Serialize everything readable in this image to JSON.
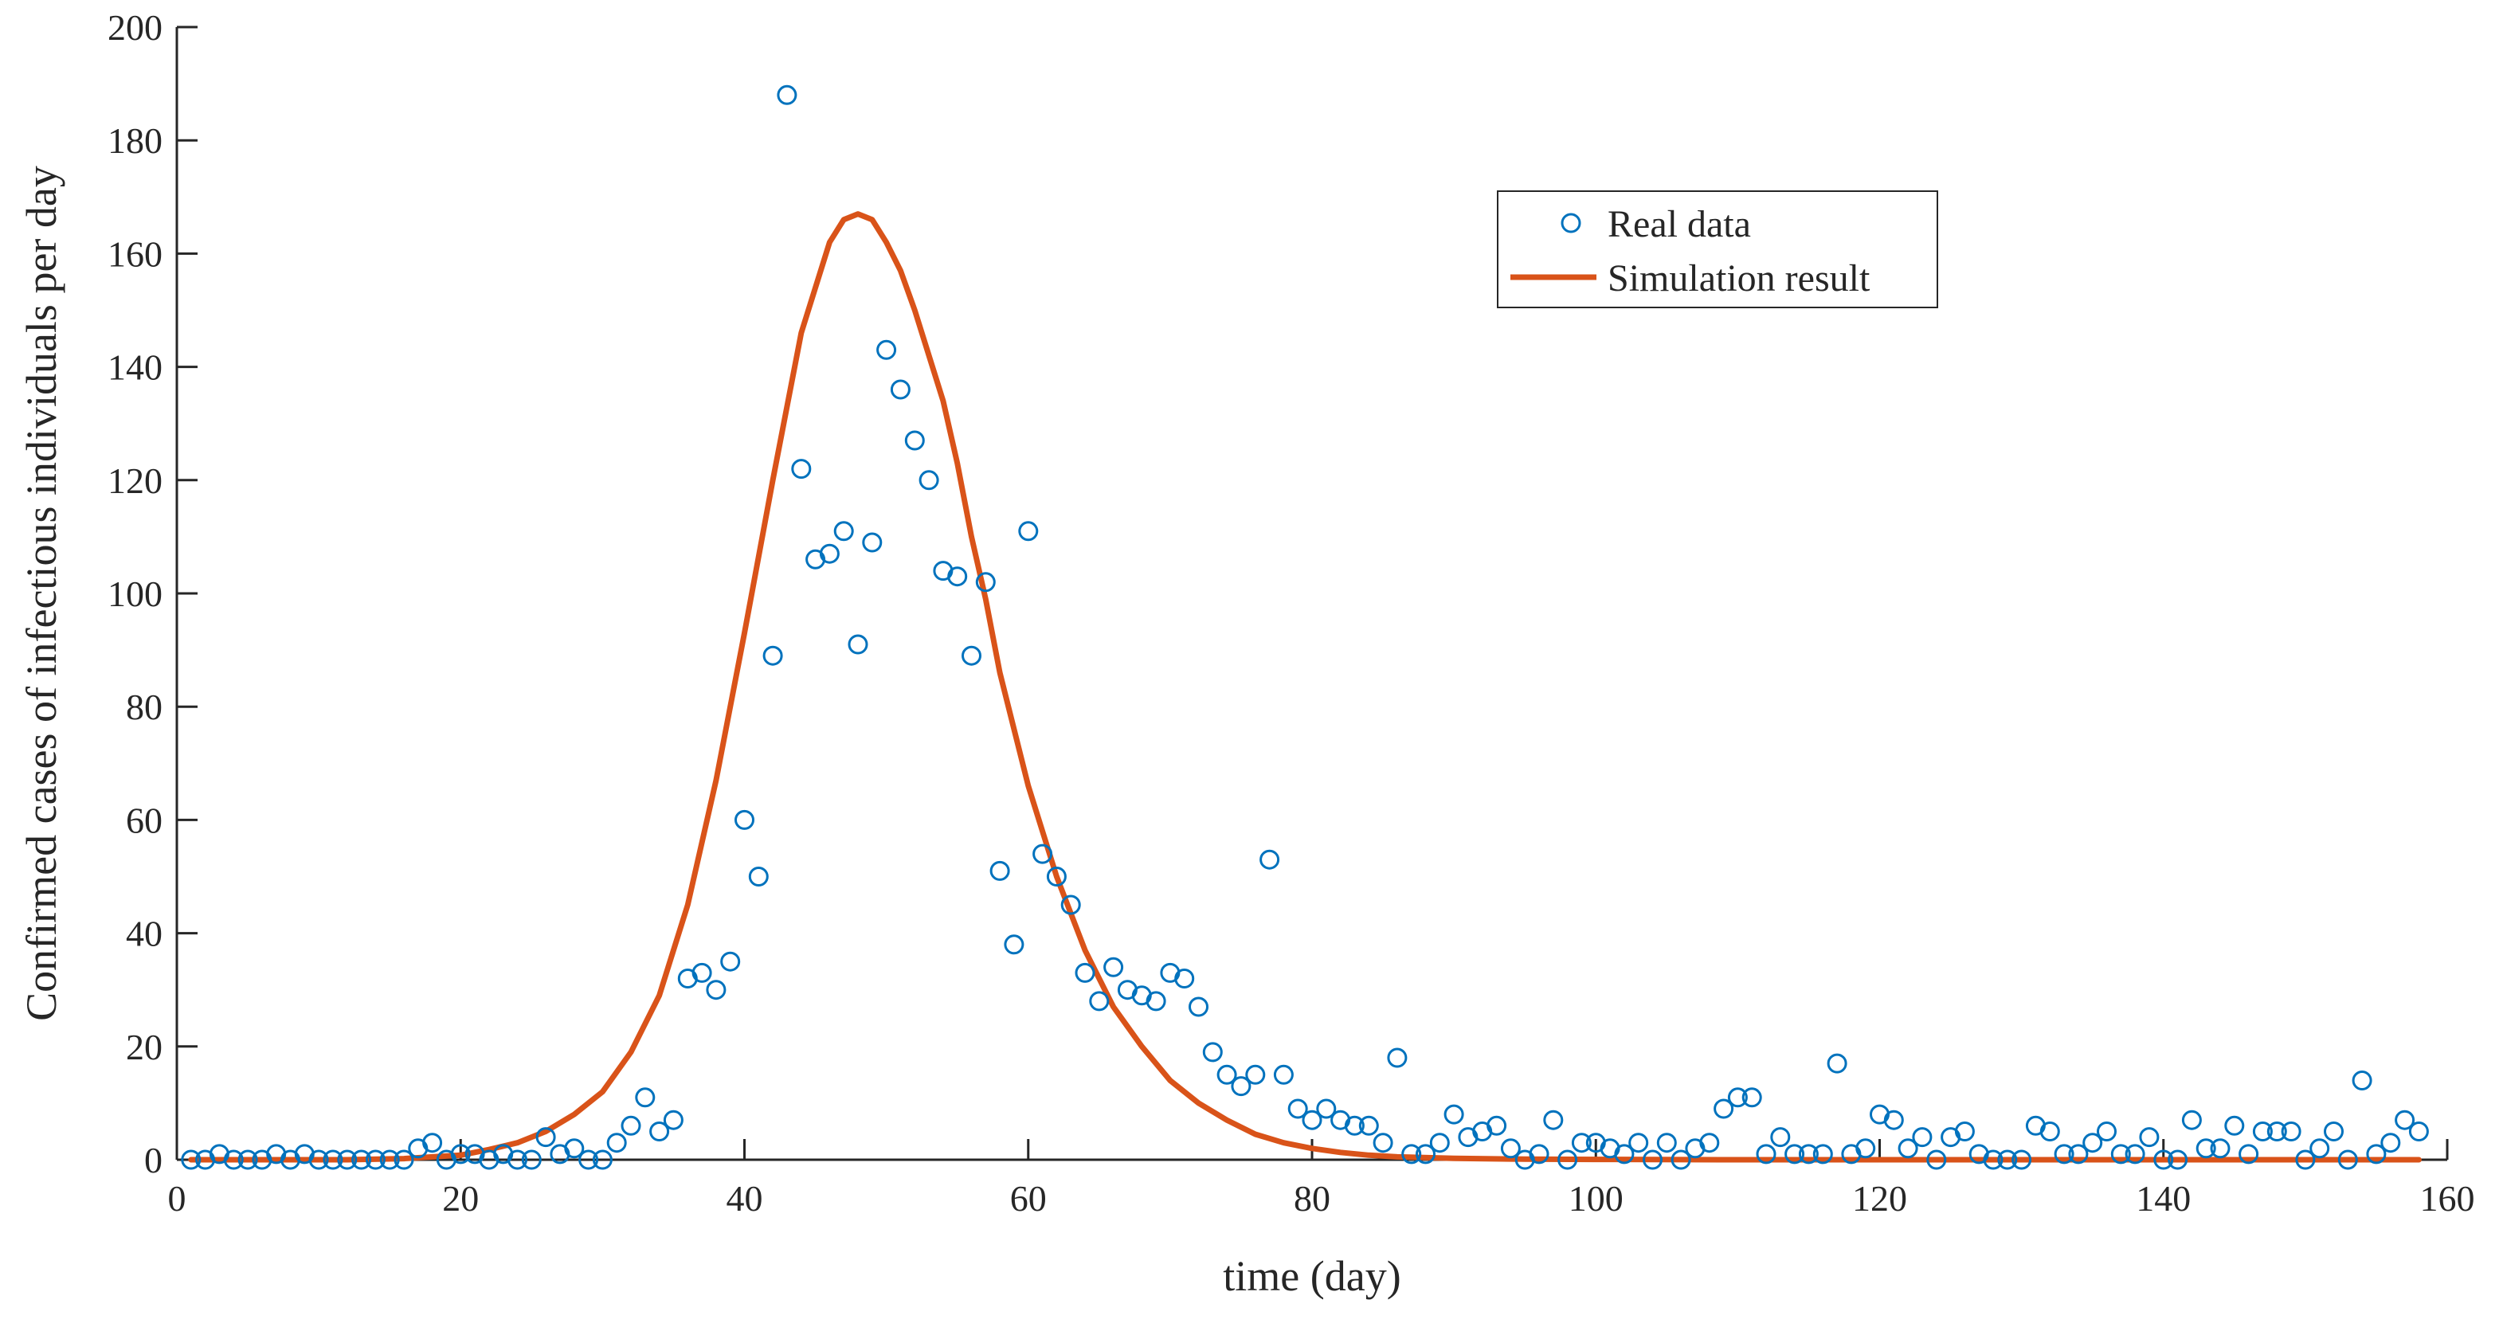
{
  "chart_data": {
    "type": "scatter",
    "title": "",
    "xlabel": "time (day)",
    "ylabel": "Confirmed cases of infectious individuals per day",
    "xlim": [
      0,
      160
    ],
    "ylim": [
      0,
      200
    ],
    "xticks": [
      0,
      20,
      40,
      60,
      80,
      100,
      120,
      140,
      160
    ],
    "yticks": [
      0,
      20,
      40,
      60,
      80,
      100,
      120,
      140,
      160,
      180,
      200
    ],
    "grid": false,
    "legend_position": "top-right",
    "colors": {
      "real": "#0072BD",
      "sim": "#D95319",
      "axis": "#262626"
    },
    "series": [
      {
        "name": "Real data",
        "kind": "scatter",
        "x": [
          1,
          2,
          3,
          4,
          5,
          6,
          7,
          8,
          9,
          10,
          11,
          12,
          13,
          14,
          15,
          16,
          17,
          18,
          19,
          20,
          21,
          22,
          23,
          24,
          25,
          26,
          27,
          28,
          29,
          30,
          31,
          32,
          33,
          34,
          35,
          36,
          37,
          38,
          39,
          40,
          41,
          42,
          43,
          44,
          45,
          46,
          47,
          48,
          49,
          50,
          51,
          52,
          53,
          54,
          55,
          56,
          57,
          58,
          59,
          60,
          61,
          62,
          63,
          64,
          65,
          66,
          67,
          68,
          69,
          70,
          71,
          72,
          73,
          74,
          75,
          76,
          77,
          78,
          79,
          80,
          81,
          82,
          83,
          84,
          85,
          86,
          87,
          88,
          89,
          90,
          91,
          92,
          93,
          94,
          95,
          96,
          97,
          98,
          99,
          100,
          101,
          102,
          103,
          104,
          105,
          106,
          107,
          108,
          109,
          110,
          111,
          112,
          113,
          114,
          115,
          116,
          117,
          118,
          119,
          120,
          121,
          122,
          123,
          124,
          125,
          126,
          127,
          128,
          129,
          130,
          131,
          132,
          133,
          134,
          135,
          136,
          137,
          138,
          139,
          140,
          141,
          142,
          143,
          144,
          145,
          146,
          147,
          148,
          149,
          150,
          151,
          152,
          153,
          154,
          155,
          156,
          157,
          158
        ],
        "y": [
          0,
          0,
          1,
          0,
          0,
          0,
          1,
          0,
          1,
          0,
          0,
          0,
          0,
          0,
          0,
          0,
          2,
          3,
          0,
          1,
          1,
          0,
          1,
          0,
          0,
          4,
          1,
          2,
          0,
          0,
          3,
          6,
          11,
          5,
          7,
          32,
          33,
          30,
          35,
          60,
          50,
          89,
          188,
          122,
          106,
          107,
          111,
          91,
          109,
          143,
          136,
          127,
          120,
          104,
          103,
          89,
          102,
          51,
          38,
          111,
          54,
          50,
          45,
          33,
          28,
          34,
          30,
          29,
          28,
          33,
          32,
          27,
          19,
          15,
          13,
          15,
          53,
          15,
          9,
          7,
          9,
          7,
          6,
          6,
          3,
          18,
          1,
          1,
          3,
          8,
          4,
          5,
          6,
          2,
          0,
          1,
          7,
          0,
          3,
          3,
          2,
          1,
          3,
          0,
          3,
          0,
          2,
          3,
          9,
          11,
          11,
          1,
          4,
          1,
          1,
          1,
          17,
          1,
          2,
          8,
          7,
          2,
          4,
          0,
          4,
          5,
          1,
          0,
          0,
          0,
          6,
          5,
          1,
          1,
          3,
          5,
          1,
          1,
          4,
          0,
          0,
          7,
          2,
          2,
          6,
          1,
          5,
          5,
          5,
          0,
          2,
          5,
          0,
          14,
          1,
          3,
          7,
          5
        ]
      },
      {
        "name": "Simulation result",
        "kind": "line",
        "x": [
          1,
          4,
          8,
          12,
          16,
          20,
          22,
          24,
          26,
          28,
          30,
          32,
          34,
          36,
          38,
          40,
          42,
          44,
          46,
          47,
          48,
          49,
          50,
          51,
          52,
          53,
          54,
          55,
          56,
          57,
          58,
          60,
          62,
          64,
          66,
          68,
          70,
          72,
          74,
          76,
          78,
          80,
          82,
          84,
          86,
          90,
          95,
          100,
          110,
          120,
          130,
          140,
          150,
          158
        ],
        "y": [
          0,
          0,
          0,
          0,
          0.2,
          0.8,
          1.8,
          3,
          5,
          8,
          12,
          19,
          29,
          45,
          67,
          93,
          120,
          146,
          162,
          166,
          167,
          166,
          162,
          157,
          150,
          142,
          134,
          123,
          110,
          99,
          86,
          66,
          50,
          37,
          27,
          20,
          14,
          10,
          7,
          4.5,
          3,
          2,
          1.3,
          0.8,
          0.5,
          0.25,
          0.1,
          0.05,
          0,
          0,
          0,
          0,
          0,
          0
        ]
      }
    ]
  }
}
